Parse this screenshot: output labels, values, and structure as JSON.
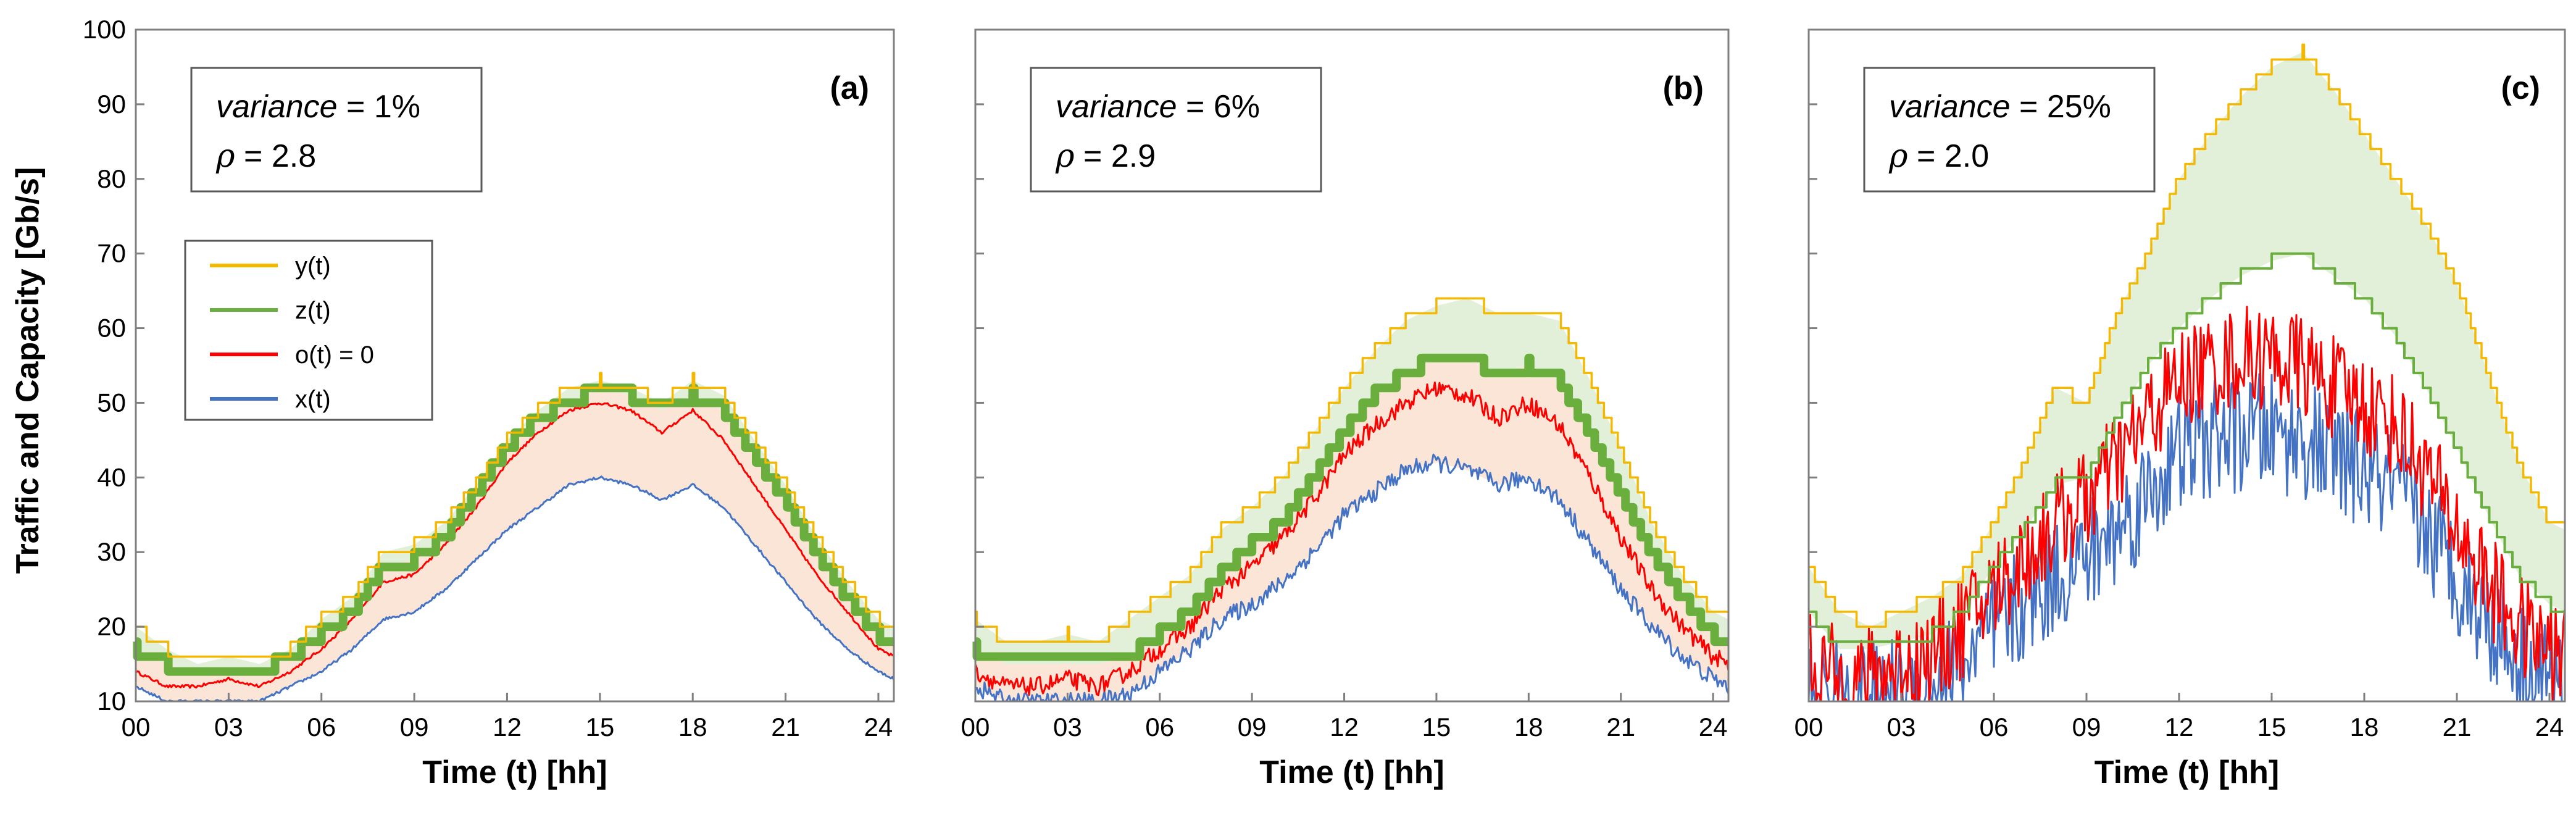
{
  "chart_data": [
    {
      "type": "line",
      "panel_label": "(a)",
      "annotation": {
        "variance_label": "variance",
        "variance_value": " = 1%",
        "rho_label": "ρ",
        "rho_value": " = 2.8"
      },
      "xlabel": "Time (t) [hh]",
      "ylabel": "Traffic and Capacity [Gb/s]",
      "xlim": [
        0,
        24.5
      ],
      "ylim": [
        10,
        100
      ],
      "x_ticks": [
        "00",
        "03",
        "06",
        "09",
        "12",
        "15",
        "18",
        "21",
        "24"
      ],
      "y_ticks": [
        "10",
        "20",
        "30",
        "40",
        "50",
        "60",
        "70",
        "80",
        "90",
        "100"
      ],
      "legend": [
        "y(t)",
        "z(t)",
        "o(t) = 0",
        "x(t)"
      ],
      "x": [
        0,
        1,
        2,
        3,
        4,
        5,
        6,
        7,
        8,
        9,
        10,
        11,
        12,
        13,
        14,
        15,
        16,
        17,
        18,
        19,
        20,
        21,
        22,
        23,
        24,
        24.5
      ],
      "series": [
        {
          "name": "y(t)",
          "color": "#F5B800",
          "values": [
            20,
            17,
            15,
            16,
            15,
            17,
            21,
            24,
            30,
            31,
            34,
            39,
            45,
            49,
            52,
            53,
            52,
            50,
            53,
            51,
            45,
            39,
            32,
            26,
            21,
            20
          ]
        },
        {
          "name": "z(t)",
          "color": "#6AAF3D",
          "values": [
            17,
            15,
            14,
            14,
            14,
            16,
            19,
            22,
            28,
            29,
            32,
            38,
            44,
            48,
            50,
            52,
            51,
            49,
            51,
            49,
            43,
            37,
            30,
            24,
            19,
            18
          ]
        },
        {
          "name": "o(t) = 0",
          "color": "#FF0000",
          "values": [
            14,
            12,
            12,
            13,
            12,
            14,
            17,
            21,
            26,
            27,
            31,
            36,
            42,
            46,
            49,
            50,
            49,
            46,
            49,
            45,
            39,
            33,
            27,
            22,
            17,
            16
          ]
        },
        {
          "name": "x(t)",
          "color": "#4472C4",
          "values": [
            12,
            10,
            10,
            10,
            10,
            12,
            14,
            17,
            21,
            22,
            25,
            29,
            33,
            36,
            39,
            40,
            39,
            37,
            39,
            36,
            31,
            26,
            21,
            17,
            14,
            13
          ]
        }
      ],
      "fill_bands": [
        {
          "upper": "y(t)",
          "lower": "z(t)",
          "color": "#E2EFD9"
        },
        {
          "upper": "z(t)",
          "lower": "x(t)",
          "color": "#FBE5D6"
        }
      ]
    },
    {
      "type": "line",
      "panel_label": "(b)",
      "annotation": {
        "variance_label": "variance",
        "variance_value": " = 6%",
        "rho_label": "ρ",
        "rho_value": " = 2.9"
      },
      "xlabel": "Time (t) [hh]",
      "xlim": [
        0,
        24.5
      ],
      "ylim": [
        10,
        100
      ],
      "x_ticks": [
        "00",
        "03",
        "06",
        "09",
        "12",
        "15",
        "18",
        "21",
        "24"
      ],
      "x": [
        0,
        1,
        2,
        3,
        4,
        5,
        6,
        7,
        8,
        9,
        10,
        11,
        12,
        13,
        14,
        15,
        16,
        17,
        18,
        19,
        20,
        21,
        22,
        23,
        24,
        24.5
      ],
      "series": [
        {
          "name": "y(t)",
          "color": "#F5B800",
          "values": [
            21,
            18,
            18,
            19,
            18,
            21,
            24,
            27,
            33,
            36,
            40,
            46,
            52,
            57,
            61,
            63,
            64,
            62,
            62,
            61,
            53,
            44,
            34,
            27,
            22,
            21
          ]
        },
        {
          "name": "z(t)",
          "color": "#6AAF3D",
          "values": [
            17,
            15,
            15,
            15,
            15,
            16,
            19,
            22,
            27,
            31,
            34,
            40,
            46,
            51,
            54,
            56,
            56,
            54,
            55,
            53,
            46,
            38,
            30,
            24,
            19,
            18
          ]
        },
        {
          "name": "o(t) = 0",
          "color": "#FF0000",
          "values": [
            14,
            12,
            12,
            13,
            12,
            14,
            17,
            20,
            25,
            28,
            32,
            37,
            43,
            47,
            50,
            52,
            51,
            48,
            50,
            47,
            40,
            32,
            25,
            20,
            16,
            15
          ]
        },
        {
          "name": "x(t)",
          "color": "#4472C4",
          "values": [
            12,
            10,
            10,
            10,
            10,
            11,
            14,
            17,
            21,
            23,
            26,
            30,
            35,
            38,
            41,
            42,
            41,
            39,
            40,
            37,
            31,
            25,
            20,
            16,
            13,
            12
          ]
        }
      ],
      "fill_bands": [
        {
          "upper": "y(t)",
          "lower": "z(t)",
          "color": "#E2EFD9"
        },
        {
          "upper": "z(t)",
          "lower": "x(t)",
          "color": "#FBE5D6"
        }
      ]
    },
    {
      "type": "line",
      "panel_label": "(c)",
      "annotation": {
        "variance_label": "variance",
        "variance_value": " = 25%",
        "rho_label": "ρ",
        "rho_value": " = 2.0"
      },
      "xlabel": "Time (t) [hh]",
      "xlim": [
        0,
        24.5
      ],
      "ylim": [
        10,
        100
      ],
      "x_ticks": [
        "00",
        "03",
        "06",
        "09",
        "12",
        "15",
        "18",
        "21",
        "24"
      ],
      "x": [
        0,
        1,
        2,
        3,
        4,
        5,
        6,
        7,
        8,
        9,
        10,
        11,
        12,
        13,
        14,
        15,
        16,
        17,
        18,
        19,
        20,
        21,
        22,
        23,
        24,
        24.5
      ],
      "series": [
        {
          "name": "y(t)",
          "color": "#F5B800",
          "values": [
            28,
            22,
            20,
            22,
            24,
            27,
            34,
            42,
            52,
            50,
            62,
            70,
            80,
            86,
            91,
            95,
            97,
            92,
            86,
            80,
            74,
            66,
            54,
            42,
            34,
            33
          ]
        },
        {
          "name": "z(t)",
          "color": "#6AAF3D",
          "values": [
            22,
            17,
            17,
            18,
            19,
            22,
            28,
            33,
            39,
            40,
            48,
            55,
            60,
            64,
            67,
            69,
            70,
            67,
            64,
            59,
            52,
            44,
            35,
            27,
            23,
            22
          ]
        },
        {
          "name": "o(t) = 0",
          "color": "#FF0000",
          "values": [
            15,
            13,
            13,
            15,
            16,
            20,
            25,
            29,
            34,
            37,
            42,
            48,
            53,
            55,
            56,
            56,
            55,
            52,
            50,
            47,
            41,
            33,
            26,
            20,
            17,
            16
          ]
        },
        {
          "name": "x(t)",
          "color": "#4472C4",
          "values": [
            12,
            10,
            10,
            11,
            12,
            15,
            19,
            23,
            27,
            29,
            33,
            38,
            43,
            45,
            46,
            46,
            45,
            43,
            41,
            38,
            33,
            27,
            21,
            16,
            13,
            12
          ]
        }
      ],
      "noise_amplitude": {
        "o(t) = 0": 7,
        "x(t)": 8
      },
      "fill_bands": [
        {
          "upper": "y(t)",
          "lower": "z(t)",
          "color": "#E2EFD9"
        }
      ]
    }
  ]
}
